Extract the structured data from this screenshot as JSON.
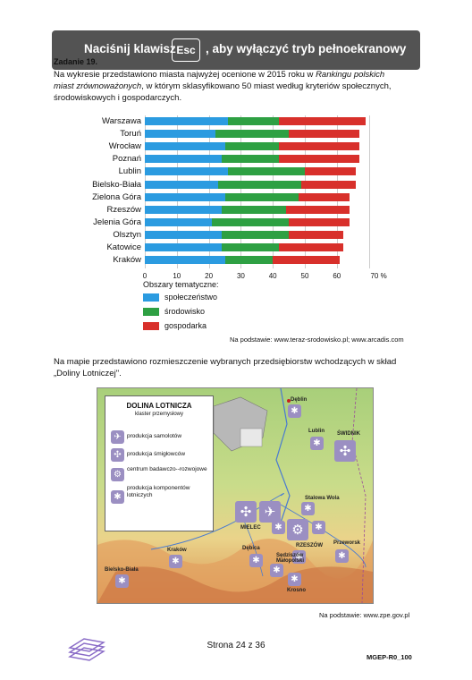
{
  "overlay": {
    "before": "Naciśnij klawisz",
    "key": "Esc",
    "after": ", aby wyłączyć tryb pełnoekranowy"
  },
  "task": {
    "number": "Zadanie 19.",
    "intro_1": "Na wykresie przedstawiono miasta najwyżej ocenione w 2015 roku w",
    "intro_ranking_1": "Rankingu polskich",
    "intro_ranking_2": "miast zrównoważonych",
    "intro_2": ", w którym sklasyfikowano 50 miast według kryteriów społecznych,",
    "intro_3": "środowiskowych i gospodarczych."
  },
  "chart_data": {
    "type": "bar",
    "stacked": true,
    "orientation": "horizontal",
    "categories": [
      "Warszawa",
      "Toruń",
      "Wrocław",
      "Poznań",
      "Lublin",
      "Bielsko-Biała",
      "Zielona Góra",
      "Rzeszów",
      "Jelenia Góra",
      "Olsztyn",
      "Katowice",
      "Kraków"
    ],
    "series": [
      {
        "name": "społeczeństwo",
        "color": "#2b9be0",
        "values": [
          26,
          22,
          25,
          24,
          26,
          23,
          25,
          24,
          21,
          24,
          24,
          25
        ]
      },
      {
        "name": "środowisko",
        "color": "#2ea043",
        "values": [
          16,
          23,
          17,
          18,
          24,
          26,
          23,
          20,
          24,
          21,
          18,
          15
        ]
      },
      {
        "name": "gospodarka",
        "color": "#d8302b",
        "values": [
          27,
          22,
          25,
          25,
          16,
          17,
          16,
          20,
          19,
          17,
          20,
          21
        ]
      }
    ],
    "xticks": [
      "0",
      "10",
      "20",
      "30",
      "40",
      "50",
      "60",
      "70 %"
    ],
    "xlim": [
      0,
      70
    ],
    "legend_title": "Obszary tematyczne:",
    "legend_position": "bottom-left",
    "grid": true
  },
  "chart_source": "Na podstawie: www.teraz-srodowisko.pl; www.arcadis.com",
  "map_intro_1": "Na mapie przedstawiono rozmieszczenie wybranych przedsiębiorstw wchodzących w skład",
  "map_intro_2": "„Doliny Lotniczej\".",
  "map": {
    "legend_title": "DOLINA LOTNICZA",
    "legend_subtitle": "klaster przemysłowy",
    "legend_items": [
      {
        "icon": "plane-icon",
        "label": "produkcja samolotów"
      },
      {
        "icon": "helicopter-icon",
        "label": "produkcja śmigłowców"
      },
      {
        "icon": "engine-icon",
        "label": "centrum badawczo--rozwojowe"
      },
      {
        "icon": "component-icon",
        "label": "produkcja komponentów lotniczych"
      }
    ],
    "cities": {
      "deblin": "Dęblin",
      "lublin": "Lublin",
      "swidnik": "ŚWIDNIK",
      "stalowa_wola": "Stalowa Wola",
      "mielec": "MIELEC",
      "rzeszow": "RZESZÓW",
      "przeworsk": "Przeworsk",
      "krakow": "Kraków",
      "debica": "Dębica",
      "sedziszow": "Sędziszów Małopolski",
      "krosno": "Krosno",
      "bielsko": "Bielsko-Biała"
    }
  },
  "map_source": "Na podstawie: www.zpe.gov.pl",
  "footer": {
    "page": "Strona 24 z 36",
    "code": "MGEP-R0_100"
  }
}
